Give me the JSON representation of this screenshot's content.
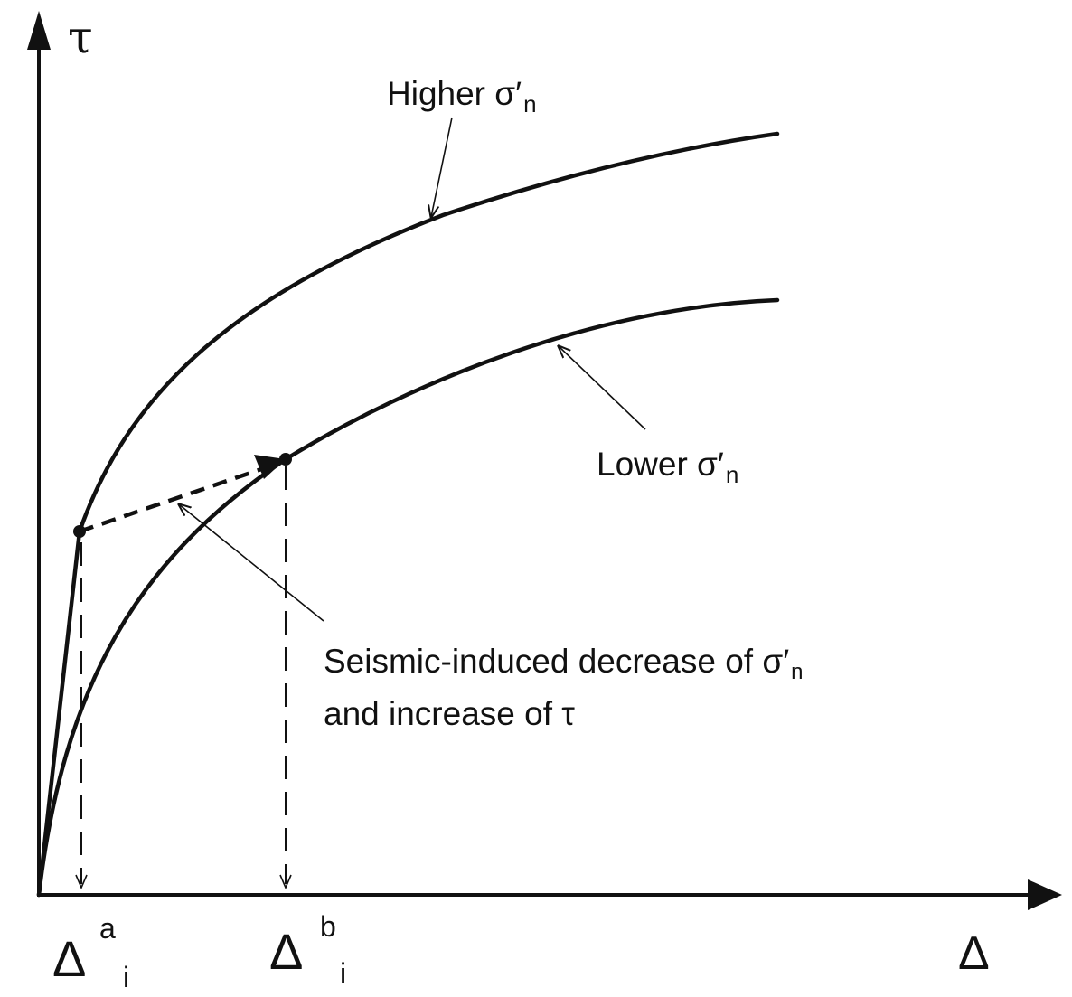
{
  "axes": {
    "y_label": "τ",
    "x_label": "Δ"
  },
  "curves": {
    "higher": {
      "label_main": "Higher σ′",
      "label_sub": "n"
    },
    "lower": {
      "label_main": "Lower σ′",
      "label_sub": "n"
    }
  },
  "annotation": {
    "line1_main": "Seismic-induced decrease of σ′",
    "line1_sub": "n",
    "line2": "and increase of τ"
  },
  "ticks": {
    "a": {
      "base": "Δ",
      "sup": "a",
      "sub": "i"
    },
    "b": {
      "base": "Δ",
      "sup": "b",
      "sub": "i"
    }
  },
  "colors": {
    "ink": "#111111",
    "background": "#ffffff"
  }
}
